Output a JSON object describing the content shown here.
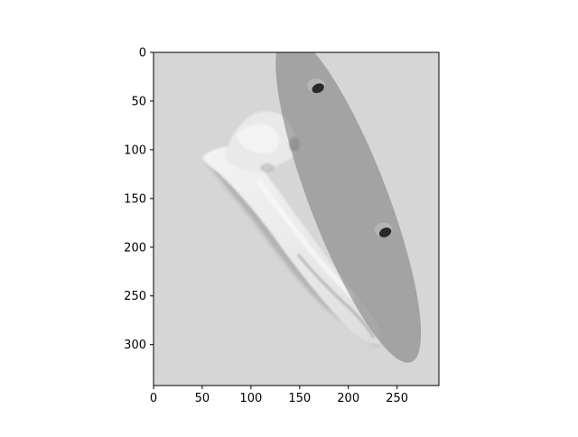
{
  "figure": {
    "background": "#ffffff",
    "image_description_colors": {
      "background_gray": "#d6d6d6",
      "cell_highlight": "#f2f2f2",
      "cell_shadow": "#9a9a9a",
      "overlay_gray": "#7a7a7a",
      "spot_dark": "#2a2a2a"
    },
    "x_axis": {
      "range": [
        0,
        293
      ],
      "ticks": [
        {
          "value": 0,
          "label": "0"
        },
        {
          "value": 50,
          "label": "50"
        },
        {
          "value": 100,
          "label": "100"
        },
        {
          "value": 150,
          "label": "150"
        },
        {
          "value": 200,
          "label": "200"
        },
        {
          "value": 250,
          "label": "250"
        }
      ]
    },
    "y_axis": {
      "range": [
        0,
        342
      ],
      "inverted": true,
      "ticks": [
        {
          "value": 0,
          "label": "0"
        },
        {
          "value": 50,
          "label": "50"
        },
        {
          "value": 100,
          "label": "100"
        },
        {
          "value": 150,
          "label": "150"
        },
        {
          "value": 200,
          "label": "200"
        },
        {
          "value": 250,
          "label": "250"
        },
        {
          "value": 300,
          "label": "300"
        }
      ]
    },
    "overlay_ellipse": {
      "center": [
        200,
        150
      ],
      "semi_axes": [
        40,
        180
      ],
      "rotation_deg": -21,
      "opacity": 0.5
    },
    "spots": [
      {
        "center": [
          168,
          35
        ]
      },
      {
        "center": [
          237,
          183
        ]
      }
    ]
  }
}
